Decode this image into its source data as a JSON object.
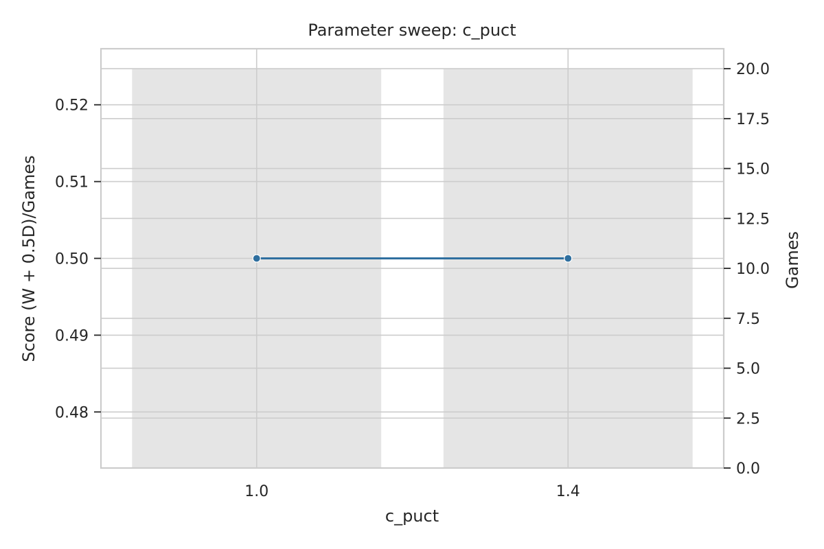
{
  "chart_data": {
    "type": "bar+line",
    "title": "Parameter sweep: c_puct",
    "xlabel": "c_puct",
    "ylabel_left": "Score (W + 0.5D)/Games",
    "ylabel_right": "Games",
    "categories": [
      "1.0",
      "1.4"
    ],
    "bars": {
      "axis": "right",
      "values": [
        20,
        20
      ],
      "color": "#e5e5e5"
    },
    "line": {
      "axis": "left",
      "x": [
        1,
        1.4
      ],
      "y": [
        0.5,
        0.5
      ],
      "color": "#2f6f9f"
    },
    "yleft": {
      "ticks": [
        0.48,
        0.49,
        0.5,
        0.51,
        0.52
      ],
      "tick_labels": [
        "0.48",
        "0.49",
        "0.50",
        "0.51",
        "0.52"
      ],
      "ylim": [
        0.4727,
        0.5273
      ],
      "label_color": "#1f77b4"
    },
    "yright": {
      "ticks": [
        0,
        2.5,
        5,
        7.5,
        10,
        12.5,
        15,
        17.5,
        20
      ],
      "tick_labels": [
        "0.0",
        "2.5",
        "5.0",
        "7.5",
        "10.0",
        "12.5",
        "15.0",
        "17.5",
        "20.0"
      ],
      "ylim": [
        0,
        21
      ]
    },
    "grid": true
  }
}
